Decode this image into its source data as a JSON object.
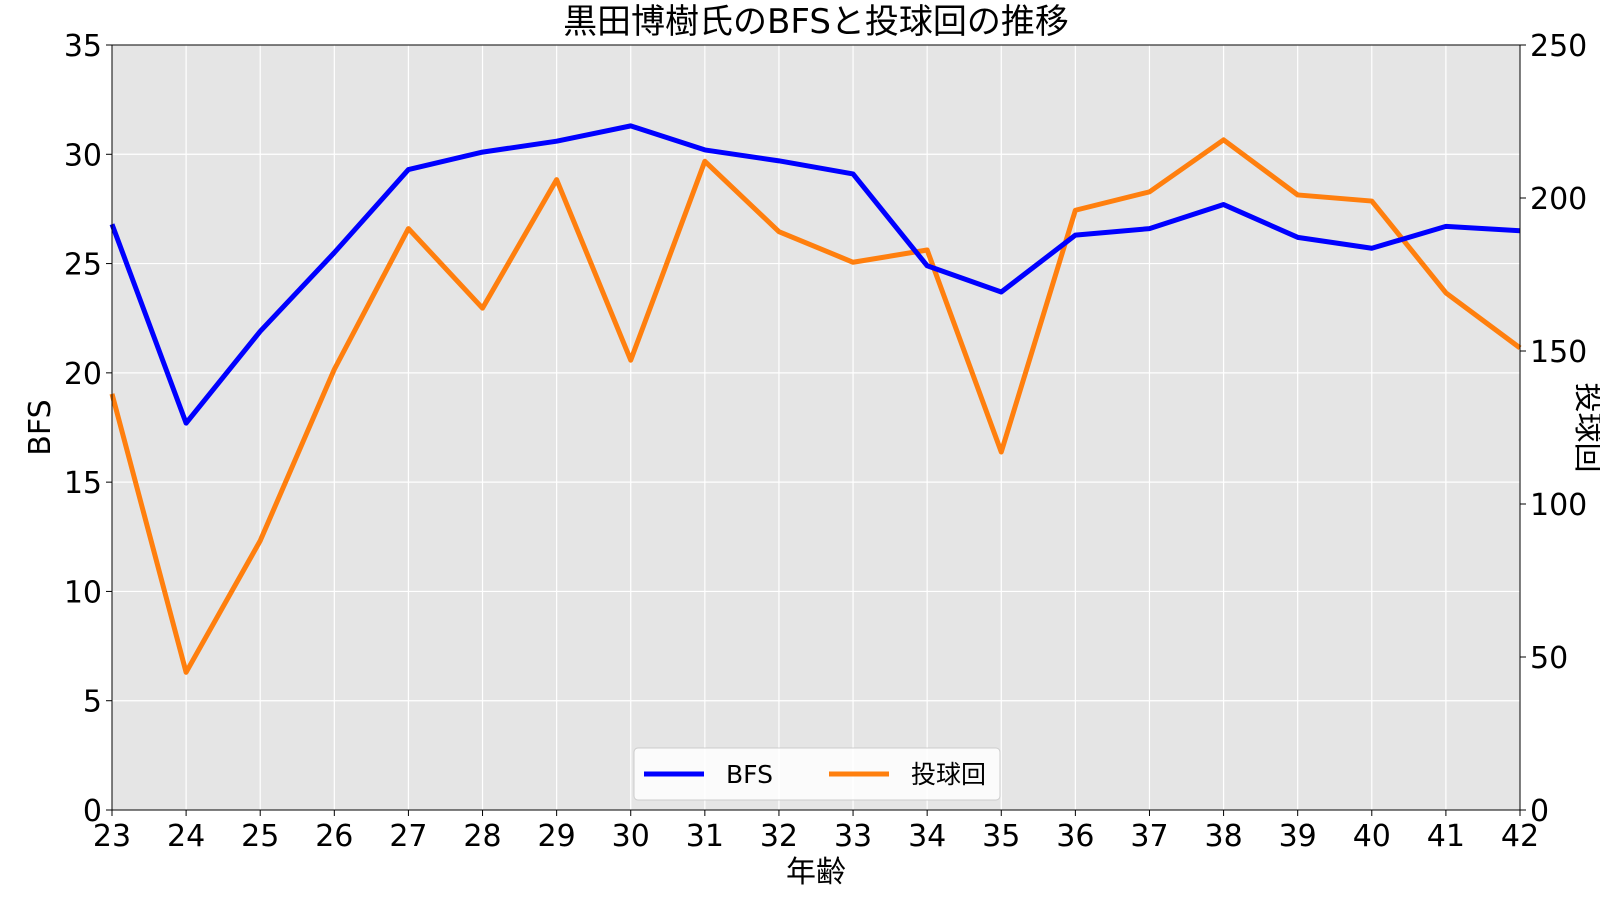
{
  "chart_data": {
    "type": "line",
    "title": "黒田博樹氏のBFSと投球回の推移",
    "xlabel": "年齢",
    "ylabel": "BFS",
    "ylabel_right": "投球回",
    "x": [
      23,
      24,
      25,
      26,
      27,
      28,
      29,
      30,
      31,
      32,
      33,
      34,
      35,
      36,
      37,
      38,
      39,
      40,
      41,
      42
    ],
    "xlim": [
      23,
      42
    ],
    "ylim": [
      0,
      35
    ],
    "ylim_right": [
      0,
      250
    ],
    "yticks": [
      "0",
      "5",
      "10",
      "15",
      "20",
      "25",
      "30",
      "35"
    ],
    "yticks_right": [
      "0",
      "50",
      "100",
      "150",
      "200",
      "250"
    ],
    "xticks": [
      "23",
      "24",
      "25",
      "26",
      "27",
      "28",
      "29",
      "30",
      "31",
      "32",
      "33",
      "34",
      "35",
      "36",
      "37",
      "38",
      "39",
      "40",
      "41",
      "42"
    ],
    "grid": true,
    "legend_position": "lower center",
    "series": [
      {
        "name": "BFS",
        "axis": "left",
        "color": "#0000ff",
        "values": [
          26.8,
          17.7,
          21.9,
          25.5,
          29.3,
          30.1,
          30.6,
          31.3,
          30.2,
          29.7,
          29.1,
          24.9,
          23.7,
          26.3,
          26.6,
          27.7,
          26.2,
          25.7,
          26.7,
          26.5
        ]
      },
      {
        "name": "投球回",
        "axis": "right",
        "color": "#ff7f0e",
        "values": [
          136,
          45,
          88,
          144,
          190,
          164,
          206,
          147,
          212,
          189,
          179,
          183,
          117,
          196,
          202,
          219,
          201,
          199,
          169,
          151
        ]
      }
    ],
    "background_color": "#e5e5e5",
    "grid_color": "#ffffff"
  }
}
